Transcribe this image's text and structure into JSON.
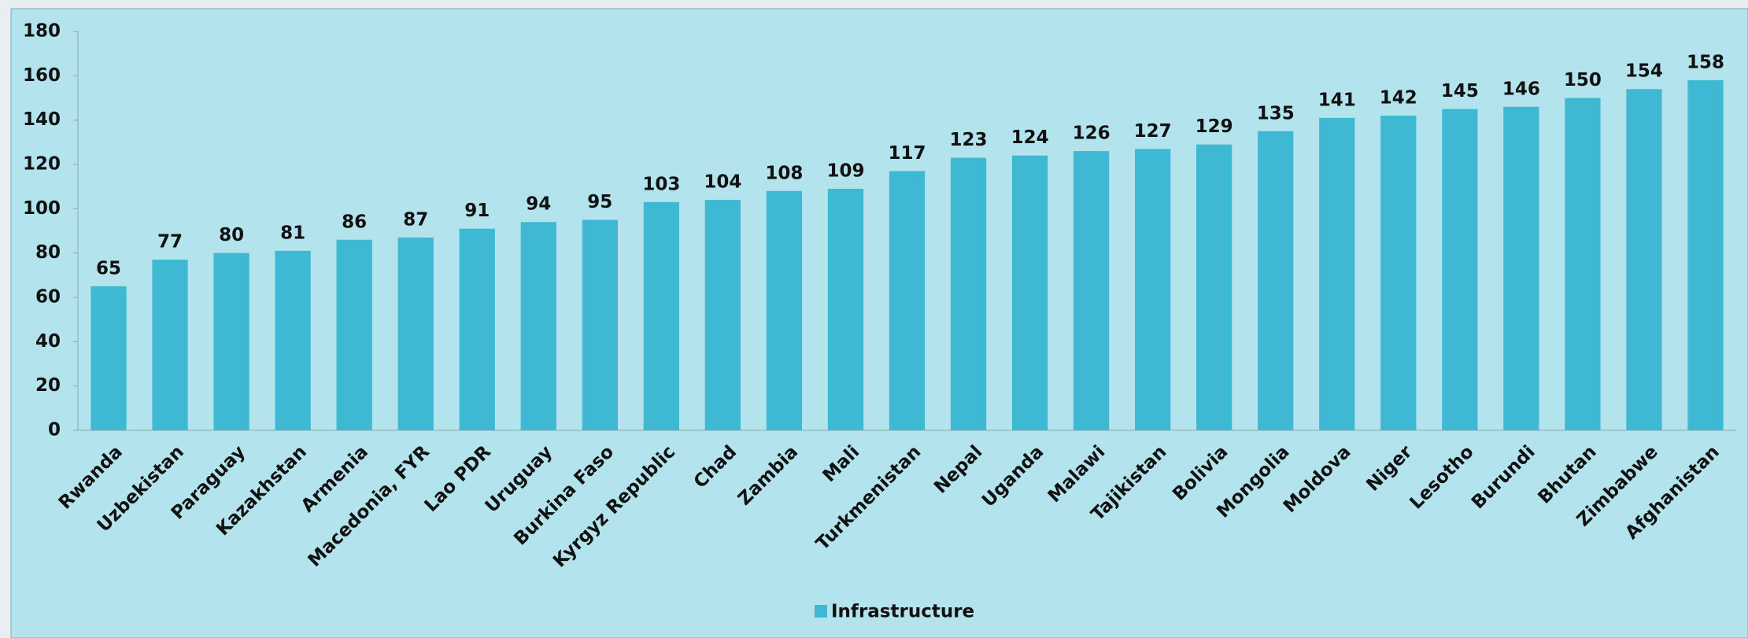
{
  "chart_data": {
    "type": "bar",
    "categories": [
      "Rwanda",
      "Uzbekistan",
      "Paraguay",
      "Kazakhstan",
      "Armenia",
      "Macedonia, FYR",
      "Lao PDR",
      "Uruguay",
      "Burkina Faso",
      "Kyrgyz Republic",
      "Chad",
      "Zambia",
      "Mali",
      "Turkmenistan",
      "Nepal",
      "Uganda",
      "Malawi",
      "Tajikistan",
      "Bolivia",
      "Mongolia",
      "Moldova",
      "Niger",
      "Lesotho",
      "Burundi",
      "Bhutan",
      "Zimbabwe",
      "Afghanistan"
    ],
    "series": [
      {
        "name": "Infrastructure",
        "color": "#3fb8d4",
        "values": [
          65,
          77,
          80,
          81,
          86,
          87,
          91,
          94,
          95,
          103,
          104,
          108,
          109,
          117,
          123,
          124,
          126,
          127,
          129,
          135,
          141,
          142,
          145,
          146,
          150,
          154,
          158
        ]
      }
    ],
    "ylim": [
      0,
      180
    ],
    "yticks": [
      0,
      20,
      40,
      60,
      80,
      100,
      120,
      140,
      160,
      180
    ],
    "grid": false
  }
}
